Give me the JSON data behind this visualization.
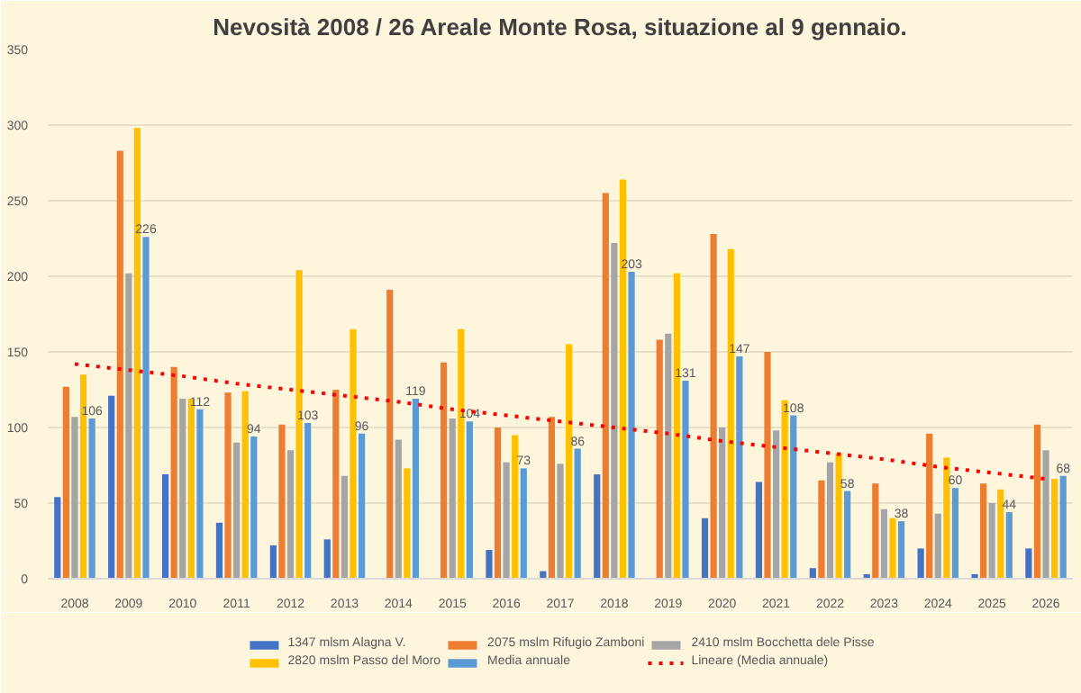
{
  "chart_data": {
    "type": "bar",
    "title": "Nevosità 2008 / 26 Areale Monte Rosa, situazione al 9 gennaio.",
    "categories": [
      "2008",
      "2009",
      "2010",
      "2011",
      "2012",
      "2013",
      "2014",
      "2015",
      "2016",
      "2017",
      "2018",
      "2019",
      "2020",
      "2021",
      "2022",
      "2023",
      "2024",
      "2025",
      "2026"
    ],
    "series": [
      {
        "name": "1347 mlsm Alagna V.",
        "color": "#4472c4",
        "values": [
          54,
          121,
          69,
          37,
          22,
          26,
          null,
          null,
          19,
          5,
          69,
          null,
          40,
          64,
          7,
          3,
          20,
          3,
          20
        ]
      },
      {
        "name": "2075 mslm Rifugio Zamboni",
        "color": "#ed7d31",
        "values": [
          127,
          283,
          140,
          123,
          102,
          125,
          191,
          143,
          100,
          107,
          255,
          158,
          228,
          150,
          65,
          63,
          96,
          63,
          102
        ]
      },
      {
        "name": "2410 mslm Bocchetta dele Pisse",
        "color": "#a5a5a5",
        "values": [
          107,
          202,
          119,
          90,
          85,
          68,
          92,
          106,
          77,
          76,
          222,
          162,
          100,
          98,
          77,
          46,
          43,
          50,
          85
        ]
      },
      {
        "name": "2820 mslm Passo del Moro",
        "color": "#ffc000",
        "values": [
          135,
          298,
          119,
          124,
          204,
          165,
          73,
          165,
          95,
          155,
          264,
          202,
          218,
          118,
          83,
          40,
          80,
          59,
          66
        ]
      },
      {
        "name": "Media annuale",
        "color": "#5b9bd5",
        "values": [
          106,
          226,
          112,
          94,
          103,
          96,
          119,
          104,
          73,
          86,
          203,
          131,
          147,
          108,
          58,
          38,
          60,
          44,
          68
        ],
        "value_labels": [
          "106",
          "226",
          "112",
          "94",
          "103",
          "96",
          "119",
          "104",
          "73",
          "86",
          "203",
          "131",
          "147",
          "108",
          "58",
          "38",
          "60",
          "44",
          "68"
        ]
      },
      {
        "name": "Lineare (Media annuale)",
        "type": "line",
        "line_style": "dotted",
        "color": "#ff0000",
        "values": [
          142,
          138,
          134,
          129,
          125,
          121,
          117,
          112,
          108,
          104,
          100,
          96,
          91,
          87,
          83,
          79,
          74,
          70,
          66
        ]
      }
    ],
    "ylim": [
      0,
      350
    ],
    "yticks": [
      0,
      50,
      100,
      150,
      200,
      250,
      300,
      350
    ],
    "grid": "y",
    "legend": "bottom"
  }
}
